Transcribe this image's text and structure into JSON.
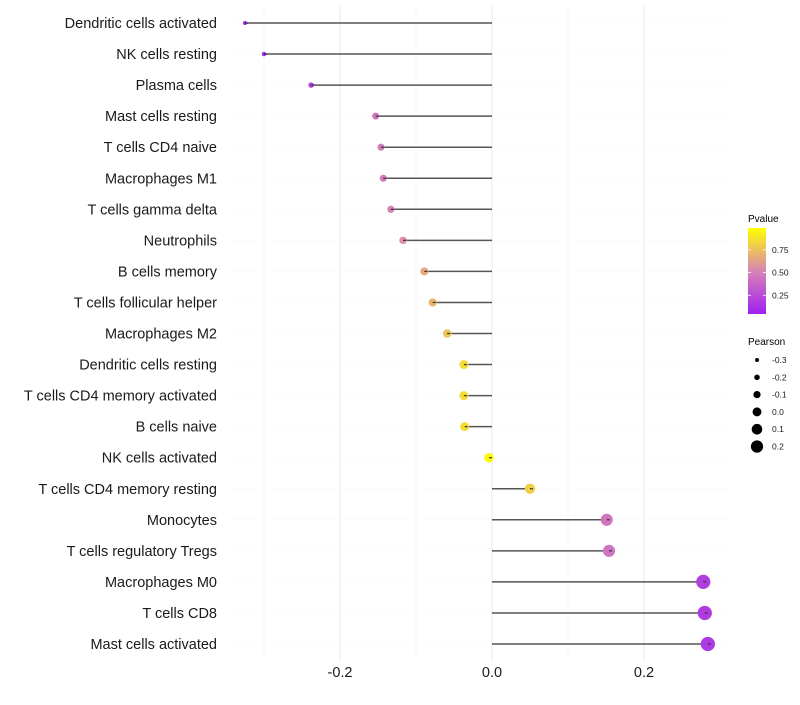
{
  "chart_data": {
    "type": "lollipop",
    "title": "",
    "xlabel": "",
    "ylabel": "",
    "xlim": [
      -0.345,
      0.31
    ],
    "x_ticks": [
      -0.2,
      0.0,
      0.2
    ],
    "x_tick_labels": [
      "-0.2",
      "0.0",
      "0.2"
    ],
    "grid": true,
    "categories": [
      "Dendritic cells activated",
      "NK cells resting",
      "Plasma cells",
      "Mast cells resting",
      "T cells CD4 naive",
      "Macrophages M1",
      "T cells gamma delta",
      "Neutrophils",
      "B cells memory",
      "T cells follicular helper",
      "Macrophages M2",
      "Dendritic cells resting",
      "T cells CD4 memory activated",
      "B cells naive",
      "NK cells activated",
      "T cells CD4 memory resting",
      "Monocytes",
      "T cells regulatory  Tregs",
      "Macrophages M0",
      "T cells CD8",
      "Mast cells activated"
    ],
    "values": [
      -0.325,
      -0.3,
      -0.238,
      -0.153,
      -0.146,
      -0.143,
      -0.133,
      -0.117,
      -0.089,
      -0.078,
      -0.059,
      -0.037,
      -0.037,
      -0.036,
      -0.004,
      0.05,
      0.151,
      0.154,
      0.278,
      0.28,
      0.284
    ],
    "pvalues": [
      0.02,
      0.05,
      0.15,
      0.42,
      0.45,
      0.46,
      0.49,
      0.55,
      0.65,
      0.7,
      0.76,
      0.85,
      0.85,
      0.86,
      0.98,
      0.8,
      0.43,
      0.42,
      0.15,
      0.14,
      0.13
    ],
    "color_legend": {
      "title": "Pvalue",
      "ticks": [
        "0.75",
        "0.50",
        "0.25"
      ],
      "tick_values": [
        0.75,
        0.5,
        0.25
      ],
      "low_color": "#a020f0",
      "mid_color": "#d884b5",
      "high_color": "#ffff00"
    },
    "size_legend": {
      "title": "Pearson",
      "labels": [
        "-0.3",
        "-0.2",
        "-0.1",
        "0.0",
        "0.1",
        "0.2"
      ],
      "values": [
        -0.3,
        -0.2,
        -0.1,
        0.0,
        0.1,
        0.2
      ]
    },
    "legend_position": "right"
  }
}
